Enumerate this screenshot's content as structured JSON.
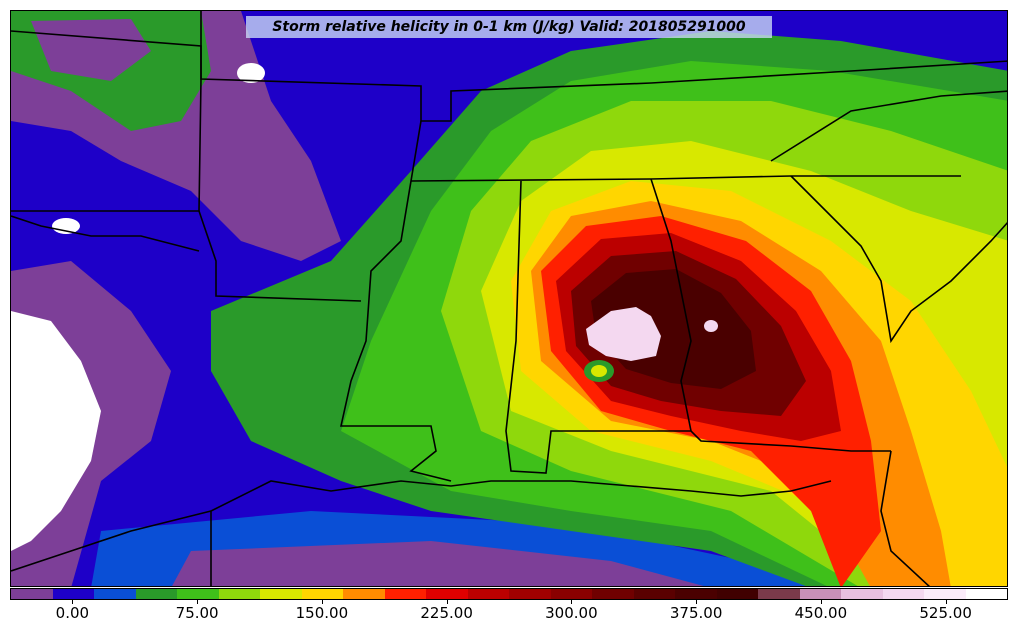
{
  "title": "Storm relative helicity in 0-1 km (J/kg) Valid: 201805291000",
  "colorbar": {
    "colors": [
      "#7d3f98",
      "#1e00c8",
      "#0a4fd6",
      "#2a9a2a",
      "#3fc01a",
      "#8fd80c",
      "#d8e800",
      "#ffd600",
      "#ff8c00",
      "#ff2000",
      "#e00000",
      "#bb0000",
      "#a00000",
      "#8a0000",
      "#700000",
      "#5a0000",
      "#4a0000",
      "#400000",
      "#7a3a4a",
      "#c890b8",
      "#e8c0e0",
      "#f4d8f0",
      "#fbecfa",
      "#ffffff"
    ],
    "tick_labels": [
      "0.00",
      "75.00",
      "150.00",
      "225.00",
      "300.00",
      "375.00",
      "450.00",
      "525.00"
    ],
    "tick_values": [
      0,
      75,
      150,
      225,
      300,
      375,
      450,
      525
    ],
    "range": [
      -37.5,
      562.5
    ]
  },
  "map": {
    "region": "Southeastern United States and Gulf of Mexico",
    "colors": {
      "purple": "#7d3f98",
      "blue": "#1e00c8",
      "blue2": "#0a4fd6",
      "green": "#2a9a2a",
      "lightgreen": "#3fc01a",
      "lime": "#8fd80c",
      "yellow": "#d8e800",
      "gold": "#ffd600",
      "orange": "#ff8c00",
      "red": "#ff2000",
      "darkred": "#bb0000",
      "maroon": "#700000",
      "deepmaroon": "#4a0000",
      "pink": "#f4d8f0",
      "white": "#ffffff",
      "border": "#000000"
    }
  }
}
